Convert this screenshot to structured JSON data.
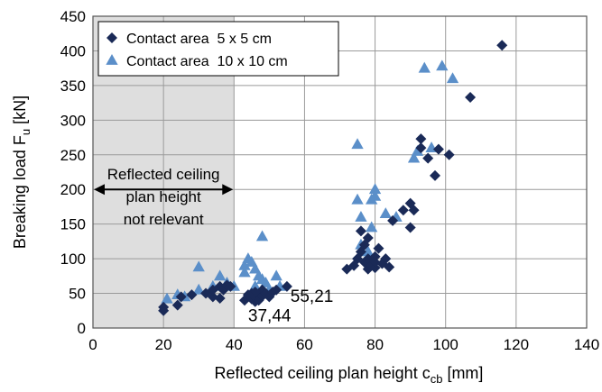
{
  "chart_data": {
    "type": "scatter",
    "title": "",
    "xlabel": "Reflected ceiling plan height c",
    "xlabel_sub": "cb",
    "xlabel_unit": " [mm]",
    "ylabel": "Breaking load F",
    "ylabel_sub": "u",
    "ylabel_unit": " [kN]",
    "xlim": [
      0,
      140
    ],
    "ylim": [
      0,
      450
    ],
    "xticks": [
      0,
      20,
      40,
      60,
      80,
      100,
      120,
      140
    ],
    "yticks": [
      0,
      50,
      100,
      150,
      200,
      250,
      300,
      350,
      400,
      450
    ],
    "grid": true,
    "legend_position": "top-left",
    "shaded_region": {
      "x_range": [
        0,
        40
      ],
      "label_lines": [
        "Reflected ceiling",
        "plan height",
        "not relevant"
      ]
    },
    "annotations": [
      "55,21",
      "37,44"
    ],
    "series": [
      {
        "name": "Contact area  5 x 5 cm",
        "marker": "diamond",
        "color": "#1a2a57",
        "points": [
          [
            20,
            25
          ],
          [
            20,
            30
          ],
          [
            24,
            33
          ],
          [
            25,
            45
          ],
          [
            28,
            48
          ],
          [
            32,
            50
          ],
          [
            34,
            45
          ],
          [
            34,
            55
          ],
          [
            36,
            43
          ],
          [
            36,
            60
          ],
          [
            37,
            55
          ],
          [
            38,
            62
          ],
          [
            39,
            60
          ],
          [
            43,
            40
          ],
          [
            44,
            45
          ],
          [
            45,
            42
          ],
          [
            45,
            50
          ],
          [
            46,
            38
          ],
          [
            46,
            44
          ],
          [
            47,
            48
          ],
          [
            47,
            40
          ],
          [
            48,
            46
          ],
          [
            48,
            55
          ],
          [
            49,
            50
          ],
          [
            50,
            45
          ],
          [
            51,
            52
          ],
          [
            55,
            60
          ],
          [
            52,
            55
          ],
          [
            46,
            52
          ],
          [
            44,
            48
          ],
          [
            72,
            85
          ],
          [
            74,
            90
          ],
          [
            75,
            100
          ],
          [
            76,
            110
          ],
          [
            77,
            95
          ],
          [
            77,
            120
          ],
          [
            78,
            85
          ],
          [
            78,
            100
          ],
          [
            79,
            90
          ],
          [
            80,
            87
          ],
          [
            80,
            95
          ],
          [
            80,
            103
          ],
          [
            81,
            115
          ],
          [
            82,
            93
          ],
          [
            83,
            100
          ],
          [
            84,
            88
          ],
          [
            85,
            155
          ],
          [
            76,
            140
          ],
          [
            78,
            130
          ],
          [
            88,
            170
          ],
          [
            90,
            145
          ],
          [
            90,
            180
          ],
          [
            91,
            170
          ],
          [
            93,
            273
          ],
          [
            93,
            260
          ],
          [
            95,
            245
          ],
          [
            97,
            220
          ],
          [
            98,
            258
          ],
          [
            101,
            250
          ],
          [
            107,
            333
          ],
          [
            116,
            408
          ]
        ]
      },
      {
        "name": "Contact area  10 x 10 cm",
        "marker": "triangle",
        "color": "#5b8fc9",
        "points": [
          [
            21,
            42
          ],
          [
            24,
            48
          ],
          [
            26,
            45
          ],
          [
            30,
            55
          ],
          [
            30,
            88
          ],
          [
            34,
            60
          ],
          [
            36,
            75
          ],
          [
            38,
            65
          ],
          [
            40,
            60
          ],
          [
            43,
            80
          ],
          [
            43,
            90
          ],
          [
            44,
            100
          ],
          [
            45,
            95
          ],
          [
            46,
            85
          ],
          [
            46,
            60
          ],
          [
            47,
            75
          ],
          [
            48,
            132
          ],
          [
            48,
            70
          ],
          [
            49,
            65
          ],
          [
            50,
            55
          ],
          [
            52,
            75
          ],
          [
            53,
            60
          ],
          [
            75,
            265
          ],
          [
            75,
            185
          ],
          [
            76,
            160
          ],
          [
            76,
            120
          ],
          [
            78,
            110
          ],
          [
            79,
            185
          ],
          [
            79,
            145
          ],
          [
            80,
            200
          ],
          [
            80,
            190
          ],
          [
            83,
            165
          ],
          [
            86,
            160
          ],
          [
            91,
            245
          ],
          [
            92,
            255
          ],
          [
            94,
            375
          ],
          [
            96,
            260
          ],
          [
            99,
            378
          ],
          [
            102,
            360
          ]
        ]
      }
    ]
  }
}
